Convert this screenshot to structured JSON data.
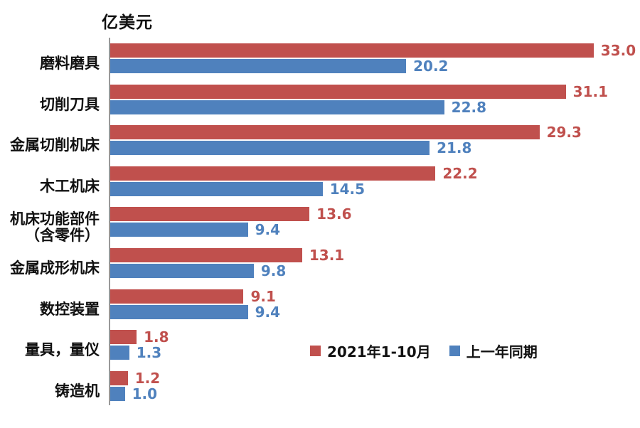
{
  "title": "亿美元",
  "legend": [
    {
      "label": "2021年1-10月",
      "color": "#c0504d"
    },
    {
      "label": "上一年同期",
      "color": "#4f81bd"
    }
  ],
  "chart_data": {
    "type": "bar",
    "orientation": "horizontal",
    "title": "亿美元",
    "xlabel": "",
    "ylabel": "",
    "xlim": [
      0,
      36
    ],
    "grid": false,
    "legend_position": "bottom-right-inside",
    "data_labels": true,
    "axis_color": "#999999",
    "categories": [
      "磨料磨具",
      "切削刀具",
      "金属切削机床",
      "木工机床",
      "机床功能部件（含零件）",
      "金属成形机床",
      "数控装置",
      "量具，量仪",
      "铸造机"
    ],
    "categories_display": [
      [
        "磨料磨具"
      ],
      [
        "切削刀具"
      ],
      [
        "金属切削机床"
      ],
      [
        "木工机床"
      ],
      [
        "机床功能部件",
        "（含零件）"
      ],
      [
        "金属成形机床"
      ],
      [
        "数控装置"
      ],
      [
        "量具，量仪"
      ],
      [
        "铸造机"
      ]
    ],
    "series": [
      {
        "name": "2021年1-10月",
        "color": "#c0504d",
        "values": [
          33.0,
          31.1,
          29.3,
          22.2,
          13.6,
          13.1,
          9.1,
          1.8,
          1.2
        ]
      },
      {
        "name": "上一年同期",
        "color": "#4f81bd",
        "values": [
          20.2,
          22.8,
          21.8,
          14.5,
          9.4,
          9.8,
          9.4,
          1.3,
          1.0
        ]
      }
    ]
  }
}
